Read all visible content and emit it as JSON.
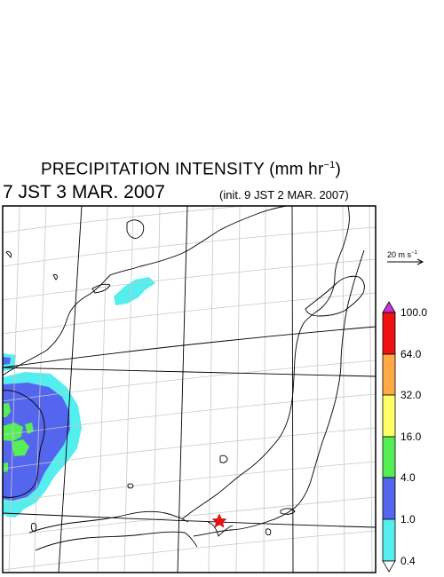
{
  "header": {
    "title_main": "PRECIPITATION INTENSITY (mm hr",
    "title_unit_exp": "−1",
    "title_close": ")",
    "valid_time": "7 JST 3 MAR. 2007",
    "init_time": "(init. 9 JST 2 MAR. 2007)"
  },
  "wind_scale": {
    "label": "20 m s",
    "exp": "−1"
  },
  "colorbar": {
    "labels": [
      "100.0",
      "64.0",
      "32.0",
      "16.0",
      "4.0",
      "1.0",
      "0.4"
    ],
    "colors": {
      "over": "#cc33dd",
      "c64_100": "#ee1111",
      "c32_64": "#ffaa44",
      "c16_32": "#ffff66",
      "c4_16": "#55ee55",
      "c1_4": "#5566ee",
      "c04_1": "#55eeee",
      "under": "#ffffff"
    }
  },
  "map": {
    "marker": "red-star",
    "colors": {
      "coast": "#000000",
      "grid": "#c8c8c8",
      "frame": "#000000"
    }
  }
}
